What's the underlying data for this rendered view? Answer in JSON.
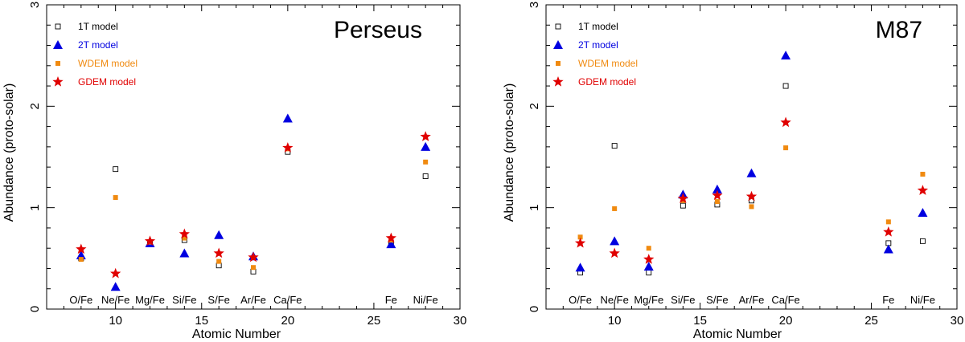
{
  "chart_data": [
    {
      "type": "scatter",
      "title": "Perseus",
      "xlabel": "Atomic Number",
      "ylabel": "Abundance (proto-solar)",
      "xlim": [
        6,
        30
      ],
      "ylim": [
        0,
        3
      ],
      "xticks": [
        10,
        15,
        20,
        25,
        30
      ],
      "yticks": [
        0,
        1,
        2,
        3
      ],
      "reference_line": 0,
      "element_labels": [
        {
          "z": 8,
          "label": "O/Fe"
        },
        {
          "z": 10,
          "label": "Ne/Fe"
        },
        {
          "z": 12,
          "label": "Mg/Fe"
        },
        {
          "z": 14,
          "label": "Si/Fe"
        },
        {
          "z": 16,
          "label": "S/Fe"
        },
        {
          "z": 18,
          "label": "Ar/Fe"
        },
        {
          "z": 20,
          "label": "Ca/Fe"
        },
        {
          "z": 26,
          "label": "Fe"
        },
        {
          "z": 28,
          "label": "Ni/Fe"
        }
      ],
      "series": [
        {
          "name": "1T model",
          "marker": "square-open",
          "color": "#000000",
          "x": [
            8,
            10,
            12,
            14,
            16,
            18,
            20,
            26,
            28
          ],
          "y": [
            0.5,
            1.38,
            0.66,
            0.68,
            0.43,
            0.37,
            1.55,
            0.65,
            1.31
          ]
        },
        {
          "name": "2T model",
          "marker": "triangle",
          "color": "#0000e0",
          "x": [
            8,
            10,
            12,
            14,
            16,
            18,
            20,
            26,
            28
          ],
          "y": [
            0.53,
            0.22,
            0.65,
            0.55,
            0.73,
            0.52,
            1.88,
            0.64,
            1.6
          ]
        },
        {
          "name": "WDEM model",
          "marker": "square",
          "color": "#f08a10",
          "x": [
            8,
            10,
            12,
            14,
            16,
            18,
            20,
            26,
            28
          ],
          "y": [
            0.49,
            1.1,
            0.66,
            0.7,
            0.47,
            0.41,
            1.58,
            0.68,
            1.45
          ]
        },
        {
          "name": "GDEM model",
          "marker": "star",
          "color": "#e00000",
          "x": [
            8,
            10,
            12,
            14,
            16,
            18,
            20,
            26,
            28
          ],
          "y": [
            0.59,
            0.35,
            0.67,
            0.74,
            0.55,
            0.51,
            1.59,
            0.7,
            1.7
          ]
        }
      ]
    },
    {
      "type": "scatter",
      "title": "M87",
      "xlabel": "Atomic Number",
      "ylabel": "Abundance (proto-solar)",
      "xlim": [
        6,
        30
      ],
      "ylim": [
        0,
        3
      ],
      "xticks": [
        10,
        15,
        20,
        25,
        30
      ],
      "yticks": [
        0,
        1,
        2,
        3
      ],
      "reference_line": 0,
      "element_labels": [
        {
          "z": 8,
          "label": "O/Fe"
        },
        {
          "z": 10,
          "label": "Ne/Fe"
        },
        {
          "z": 12,
          "label": "Mg/Fe"
        },
        {
          "z": 14,
          "label": "Si/Fe"
        },
        {
          "z": 16,
          "label": "S/Fe"
        },
        {
          "z": 18,
          "label": "Ar/Fe"
        },
        {
          "z": 20,
          "label": "Ca/Fe"
        },
        {
          "z": 26,
          "label": "Fe"
        },
        {
          "z": 28,
          "label": "Ni/Fe"
        }
      ],
      "series": [
        {
          "name": "1T model",
          "marker": "square-open",
          "color": "#000000",
          "x": [
            8,
            10,
            12,
            14,
            16,
            18,
            20,
            26,
            28
          ],
          "y": [
            0.36,
            1.61,
            0.36,
            1.02,
            1.03,
            1.07,
            2.2,
            0.65,
            0.67
          ]
        },
        {
          "name": "2T model",
          "marker": "triangle",
          "color": "#0000e0",
          "x": [
            8,
            10,
            12,
            14,
            16,
            18,
            20,
            26,
            28
          ],
          "y": [
            0.41,
            0.67,
            0.42,
            1.13,
            1.18,
            1.34,
            2.5,
            0.59,
            0.95
          ]
        },
        {
          "name": "WDEM model",
          "marker": "square",
          "color": "#f08a10",
          "x": [
            8,
            10,
            12,
            14,
            16,
            18,
            20,
            26,
            28
          ],
          "y": [
            0.71,
            0.99,
            0.6,
            1.07,
            1.06,
            1.01,
            1.59,
            0.86,
            1.33
          ]
        },
        {
          "name": "GDEM model",
          "marker": "star",
          "color": "#e00000",
          "x": [
            8,
            10,
            12,
            14,
            16,
            18,
            20,
            26,
            28
          ],
          "y": [
            0.65,
            0.55,
            0.49,
            1.09,
            1.12,
            1.11,
            1.84,
            0.76,
            1.17
          ]
        }
      ]
    }
  ]
}
